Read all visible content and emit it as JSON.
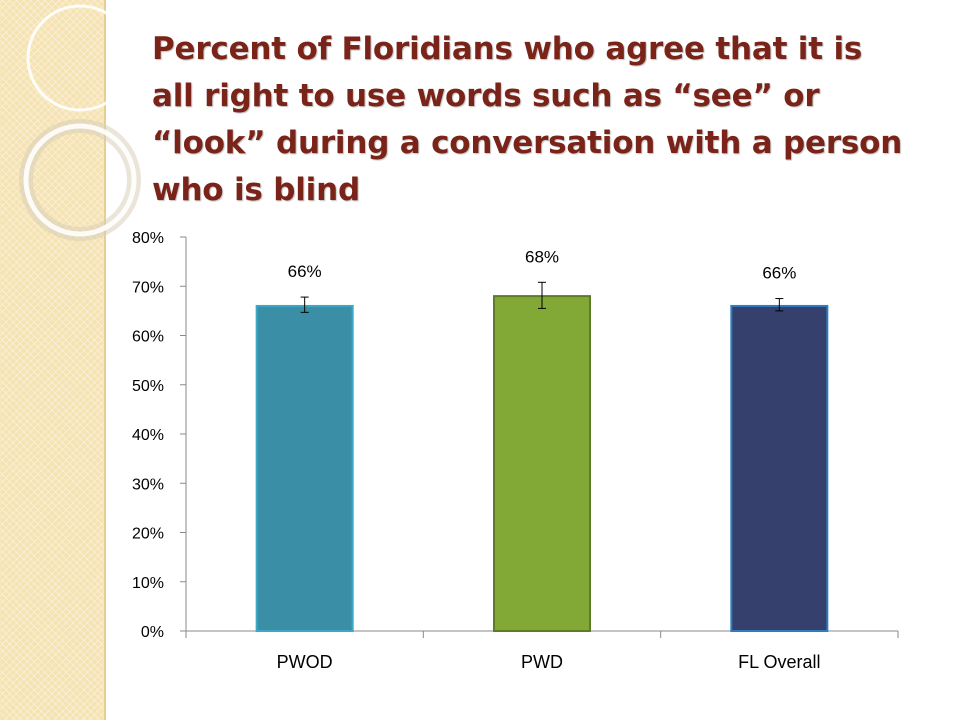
{
  "slide": {
    "title": "Percent of Floridians who agree that it is all right to use words such as “see” or “look” during a conversation with a person who is blind"
  },
  "chart_data": {
    "type": "bar",
    "title": "",
    "xlabel": "",
    "ylabel": "",
    "ylim": [
      0,
      0.8
    ],
    "yticks": [
      "0%",
      "10%",
      "20%",
      "30%",
      "40%",
      "50%",
      "60%",
      "70%",
      "80%"
    ],
    "categories": [
      "PWOD",
      "PWD",
      "FL Overall"
    ],
    "values": [
      0.66,
      0.68,
      0.66
    ],
    "data_labels": [
      "66%",
      "68%",
      "66%"
    ],
    "error_bars": [
      {
        "low": 0.647,
        "high": 0.678
      },
      {
        "low": 0.655,
        "high": 0.708
      },
      {
        "low": 0.65,
        "high": 0.675
      }
    ],
    "colors": [
      "#3a8fa6",
      "#82a935",
      "#35416c"
    ],
    "border_colors": [
      "#3aa8c6",
      "#5d7b28",
      "#2f7cc0"
    ],
    "grid": false,
    "legend": "none"
  }
}
